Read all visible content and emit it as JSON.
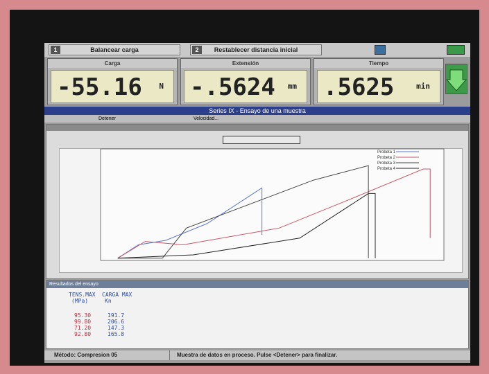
{
  "toolbar": {
    "button_1": {
      "number": "1",
      "label": "Balancear carga"
    },
    "button_2": {
      "number": "2",
      "label": "Restablecer distancia inicial"
    }
  },
  "readouts": [
    {
      "label": "Carga",
      "value": "-55.16",
      "unit": "N"
    },
    {
      "label": "Extensión",
      "value": "-.5624",
      "unit": "mm"
    },
    {
      "label": "Tiempo",
      "value": ".5625",
      "unit": "min"
    }
  ],
  "window_title": "Series IX - Ensayo de una muestra",
  "menu": {
    "items": [
      "Detener",
      "Velocidad..."
    ]
  },
  "chart": {
    "type": "line",
    "xlim": [
      0,
      100
    ],
    "ylim": [
      0,
      100
    ],
    "series": [
      {
        "name": "Probeta 1",
        "color": "#5a78d0",
        "x": [
          5,
          11,
          19,
          31,
          47,
          47
        ],
        "y": [
          2,
          14,
          18,
          33,
          65,
          23
        ]
      },
      {
        "name": "Probeta 2",
        "color": "#cc5566",
        "x": [
          5,
          13,
          24,
          52,
          72,
          94,
          96,
          96
        ],
        "y": [
          2,
          17,
          14,
          29,
          54,
          82,
          82,
          20
        ]
      },
      {
        "name": "Probeta 3",
        "color": "#444444",
        "x": [
          5,
          18,
          25,
          62,
          78,
          78
        ],
        "y": [
          2,
          2,
          29,
          72,
          85,
          2
        ]
      },
      {
        "name": "Probeta 4",
        "color": "#222222",
        "x": [
          5,
          27,
          58,
          78,
          80,
          80
        ],
        "y": [
          2,
          5,
          20,
          60,
          60,
          2
        ]
      }
    ]
  },
  "results": {
    "title": "Resultados del ensayo",
    "headers": [
      "TENS.MAX",
      "CARGA MAX"
    ],
    "units": [
      "(MPa)",
      "Kn"
    ],
    "rows": [
      [
        "95.30",
        "191.7"
      ],
      [
        "99.80",
        "206.6"
      ],
      [
        "71.20",
        "147.3"
      ],
      [
        "92.80",
        "165.8"
      ]
    ]
  },
  "status": {
    "method": "Método: Compresion 05",
    "message": "Muestra de datos en proceso. Pulse <Detener> para finalizar."
  }
}
